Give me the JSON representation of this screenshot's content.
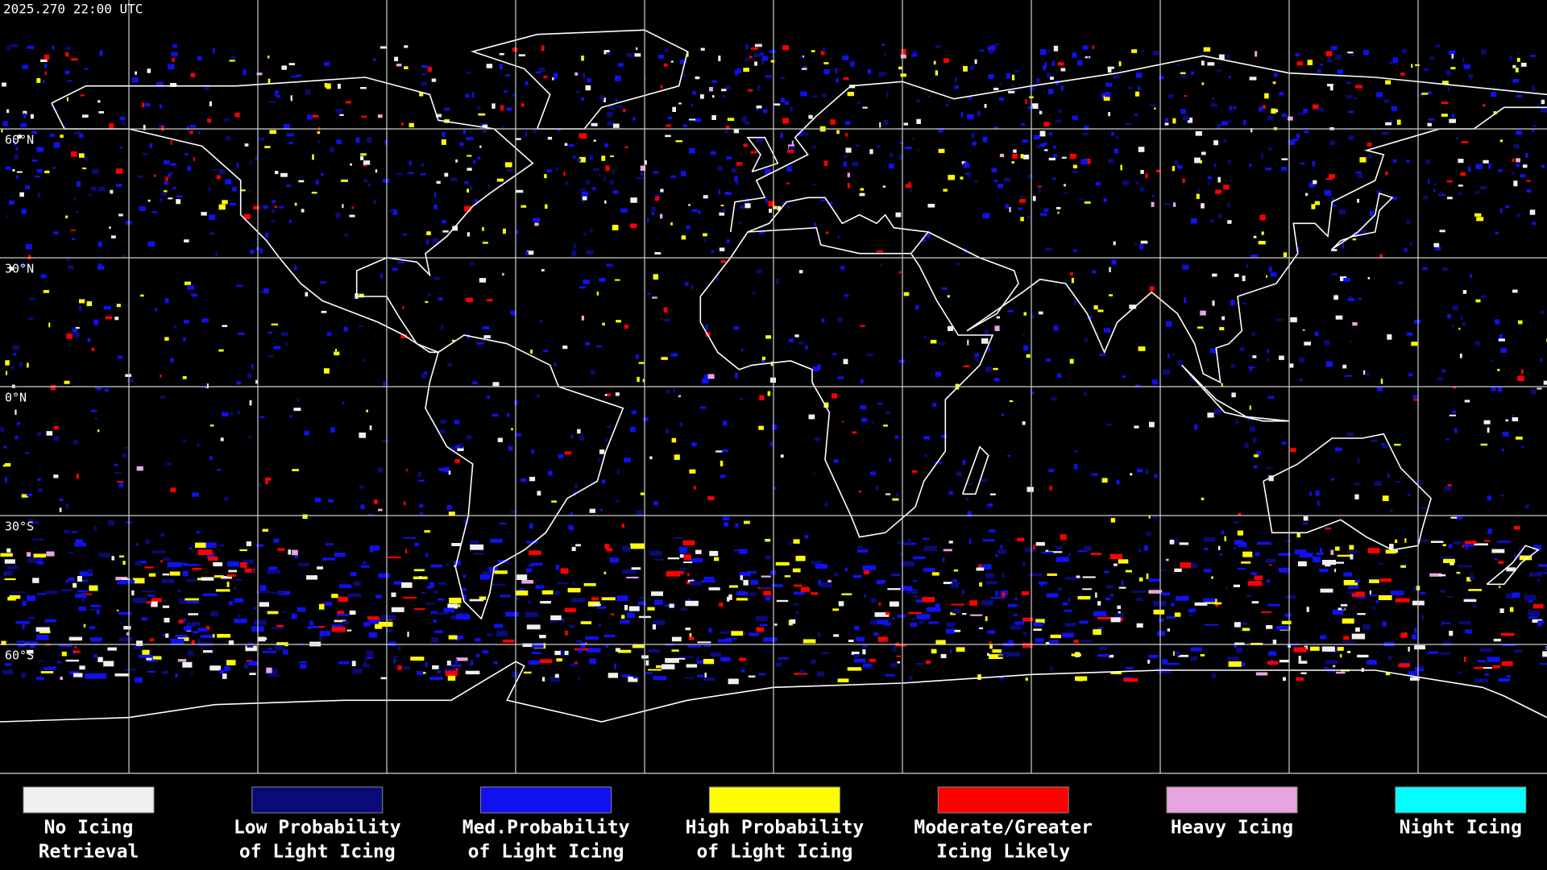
{
  "timestamp": "2025.270 22:00 UTC",
  "latitude_labels": [
    "60°N",
    "30°N",
    "0°N",
    "30°S",
    "60°S"
  ],
  "legend": [
    {
      "color": "#f0f0f0",
      "lines": [
        "No Icing",
        "Retrieval"
      ]
    },
    {
      "color": "#0a0a78",
      "lines": [
        "Low Probability",
        "of Light Icing"
      ]
    },
    {
      "color": "#1010f0",
      "lines": [
        "Med.Probability",
        "of Light Icing"
      ]
    },
    {
      "color": "#ffff00",
      "lines": [
        "High Probability",
        "of Light Icing"
      ]
    },
    {
      "color": "#ff0000",
      "lines": [
        "Moderate/Greater",
        "Icing Likely"
      ]
    },
    {
      "color": "#e8a4e0",
      "lines": [
        "Heavy Icing"
      ]
    },
    {
      "color": "#00ffff",
      "lines": [
        "Night Icing"
      ]
    }
  ]
}
